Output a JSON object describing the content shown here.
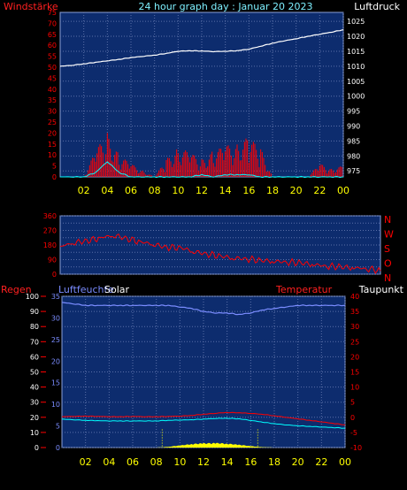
{
  "header": {
    "left_label": "Windstärke",
    "title": "24 hour graph day : Januar 20 2023",
    "right_label": "Luftdruck"
  },
  "colors": {
    "background": "#000000",
    "plot_bg": "#0d2c6e",
    "grid": "#5a6fa8",
    "frame": "#8aa0d8",
    "red": "#ff0000",
    "white": "#ffffff",
    "cyan": "#00ffff",
    "yellow": "#ffff00",
    "light_blue": "#7a8cff",
    "header_cyan": "#7ef0ff"
  },
  "panel3_labels": {
    "rain": "Regen",
    "humidity": "Luftfeuchte",
    "solar": "Solar",
    "temperature": "Temperatur",
    "dewpoint": "Taupunkt"
  },
  "chart_data": [
    {
      "type": "line",
      "title": "24 hour graph day : Januar 20 2023",
      "x_ticks": [
        "02",
        "04",
        "06",
        "08",
        "10",
        "12",
        "14",
        "16",
        "18",
        "20",
        "22",
        "00"
      ],
      "left_axis": {
        "label": "Windstärke",
        "range": [
          0,
          75
        ],
        "ticks": [
          0,
          5,
          10,
          15,
          20,
          25,
          30,
          35,
          40,
          45,
          50,
          55,
          60,
          65,
          70,
          75
        ]
      },
      "right_axis": {
        "label": "Luftdruck",
        "range": [
          973,
          1028
        ],
        "ticks": [
          975,
          980,
          985,
          990,
          995,
          1000,
          1005,
          1010,
          1015,
          1020,
          1025
        ]
      },
      "series": [
        {
          "name": "Luftdruck",
          "axis": "right",
          "x": [
            0,
            1,
            2,
            3,
            4,
            5,
            6,
            7,
            8,
            9,
            10,
            11,
            12,
            13,
            14,
            15,
            16,
            17,
            18,
            19,
            20,
            21,
            22,
            23,
            24
          ],
          "values": [
            1010.0,
            1010.3,
            1010.8,
            1011.3,
            1011.8,
            1012.3,
            1012.9,
            1013.3,
            1013.7,
            1014.3,
            1015.0,
            1015.2,
            1015.1,
            1014.9,
            1015.0,
            1015.2,
            1015.7,
            1016.7,
            1017.7,
            1018.5,
            1019.2,
            1020.0,
            1020.7,
            1021.4,
            1022.2
          ]
        },
        {
          "name": "Windstärke (Böen)",
          "axis": "left",
          "x": [
            0,
            1,
            2,
            3,
            4,
            5,
            6,
            7,
            8,
            9,
            10,
            11,
            12,
            13,
            14,
            15,
            16,
            17,
            18,
            19,
            20,
            21,
            22,
            23,
            24
          ],
          "values": [
            0,
            0,
            0,
            12,
            20,
            10,
            6,
            3,
            0,
            8,
            14,
            11,
            8,
            12,
            14,
            16,
            18,
            13,
            0,
            0,
            0,
            0,
            6,
            4,
            5
          ]
        },
        {
          "name": "Windstärke (Mittel)",
          "axis": "left",
          "x": [
            0,
            1,
            2,
            3,
            4,
            5,
            6,
            7,
            8,
            9,
            10,
            11,
            12,
            13,
            14,
            15,
            16,
            17,
            18,
            19,
            20,
            21,
            22,
            23,
            24
          ],
          "values": [
            0,
            0,
            0,
            2,
            7,
            2,
            0,
            0,
            0,
            0,
            0,
            0,
            1,
            0,
            1,
            1,
            1,
            0,
            0,
            0,
            0,
            0,
            0,
            0,
            0
          ]
        }
      ]
    },
    {
      "type": "line",
      "x_ticks": [
        "02",
        "04",
        "06",
        "08",
        "10",
        "12",
        "14",
        "16",
        "18",
        "20",
        "22",
        "00"
      ],
      "left_axis": {
        "range": [
          0,
          360
        ],
        "ticks": [
          0,
          45,
          90,
          135,
          180,
          225,
          270,
          315,
          360
        ],
        "tick_labels": [
          "0",
          "",
          "90",
          "",
          "180",
          "",
          "270",
          "",
          "360"
        ]
      },
      "right_axis": {
        "ticks": [
          "N",
          "W",
          "S",
          "O",
          "N"
        ]
      },
      "series": [
        {
          "name": "Windrichtung",
          "x": [
            0,
            1,
            2,
            3,
            4,
            5,
            6,
            7,
            8,
            9,
            10,
            11,
            12,
            13,
            14,
            15,
            16,
            17,
            18,
            19,
            20,
            21,
            22,
            23,
            24
          ],
          "values": [
            170,
            195,
            205,
            225,
            240,
            220,
            200,
            185,
            165,
            165,
            140,
            125,
            112,
            100,
            95,
            85,
            80,
            75,
            70,
            60,
            50,
            45,
            40,
            35,
            20
          ]
        }
      ]
    },
    {
      "type": "line",
      "x_ticks": [
        "02",
        "04",
        "06",
        "08",
        "10",
        "12",
        "14",
        "16",
        "18",
        "20",
        "22",
        "00"
      ],
      "left_axis": {
        "label": "Luftfeuchte",
        "range": [
          0,
          100
        ],
        "ticks": [
          0,
          10,
          20,
          30,
          40,
          50,
          60,
          70,
          80,
          90,
          100
        ]
      },
      "rain_axis": {
        "label": "Regen",
        "range": [
          0,
          35
        ],
        "ticks": [
          0,
          5,
          10,
          15,
          20,
          25,
          30,
          35
        ]
      },
      "right_axis": {
        "label": "Temperatur",
        "range": [
          -10,
          40
        ],
        "ticks": [
          -10,
          -5,
          0,
          5,
          10,
          15,
          20,
          25,
          30,
          35,
          40
        ]
      },
      "series": [
        {
          "name": "Luftfeuchte",
          "axis": "left",
          "x": [
            0,
            1,
            2,
            3,
            4,
            5,
            6,
            7,
            8,
            9,
            10,
            11,
            12,
            13,
            14,
            15,
            16,
            17,
            18,
            19,
            20,
            21,
            22,
            23,
            24
          ],
          "values": [
            96,
            95,
            94,
            94,
            94,
            94,
            94,
            94,
            94,
            94,
            93,
            92,
            90,
            89,
            89,
            88,
            89,
            91,
            92,
            93,
            94,
            94,
            94,
            94,
            94
          ]
        },
        {
          "name": "Temperatur",
          "axis": "right",
          "x": [
            0,
            1,
            2,
            3,
            4,
            5,
            6,
            7,
            8,
            9,
            10,
            11,
            12,
            13,
            14,
            15,
            16,
            17,
            18,
            19,
            20,
            21,
            22,
            23,
            24
          ],
          "values": [
            0.2,
            0.3,
            0.4,
            0.3,
            0.2,
            0.2,
            0.3,
            0.2,
            0.2,
            0.3,
            0.4,
            0.6,
            1.0,
            1.3,
            1.6,
            1.5,
            1.3,
            1.0,
            0.5,
            0.0,
            -0.5,
            -1.0,
            -1.5,
            -2.0,
            -2.5
          ]
        },
        {
          "name": "Taupunkt",
          "axis": "right",
          "x": [
            0,
            1,
            2,
            3,
            4,
            5,
            6,
            7,
            8,
            9,
            10,
            11,
            12,
            13,
            14,
            15,
            16,
            17,
            18,
            19,
            20,
            21,
            22,
            23,
            24
          ],
          "values": [
            -0.6,
            -0.8,
            -1.0,
            -1.1,
            -1.2,
            -1.2,
            -1.2,
            -1.2,
            -1.2,
            -1.0,
            -0.9,
            -0.8,
            -0.6,
            -0.4,
            -0.3,
            -0.5,
            -1.0,
            -1.6,
            -2.1,
            -2.5,
            -2.8,
            -3.0,
            -3.2,
            -3.4,
            -3.6
          ]
        },
        {
          "name": "Solar",
          "axis": "left",
          "x": [
            0,
            8,
            9,
            10,
            11,
            12,
            13,
            14,
            15,
            16,
            17,
            18,
            24
          ],
          "values": [
            0,
            0,
            0.5,
            1.5,
            2.5,
            3.0,
            3.2,
            2.8,
            2.0,
            1.0,
            0.3,
            0,
            0
          ]
        }
      ]
    }
  ]
}
